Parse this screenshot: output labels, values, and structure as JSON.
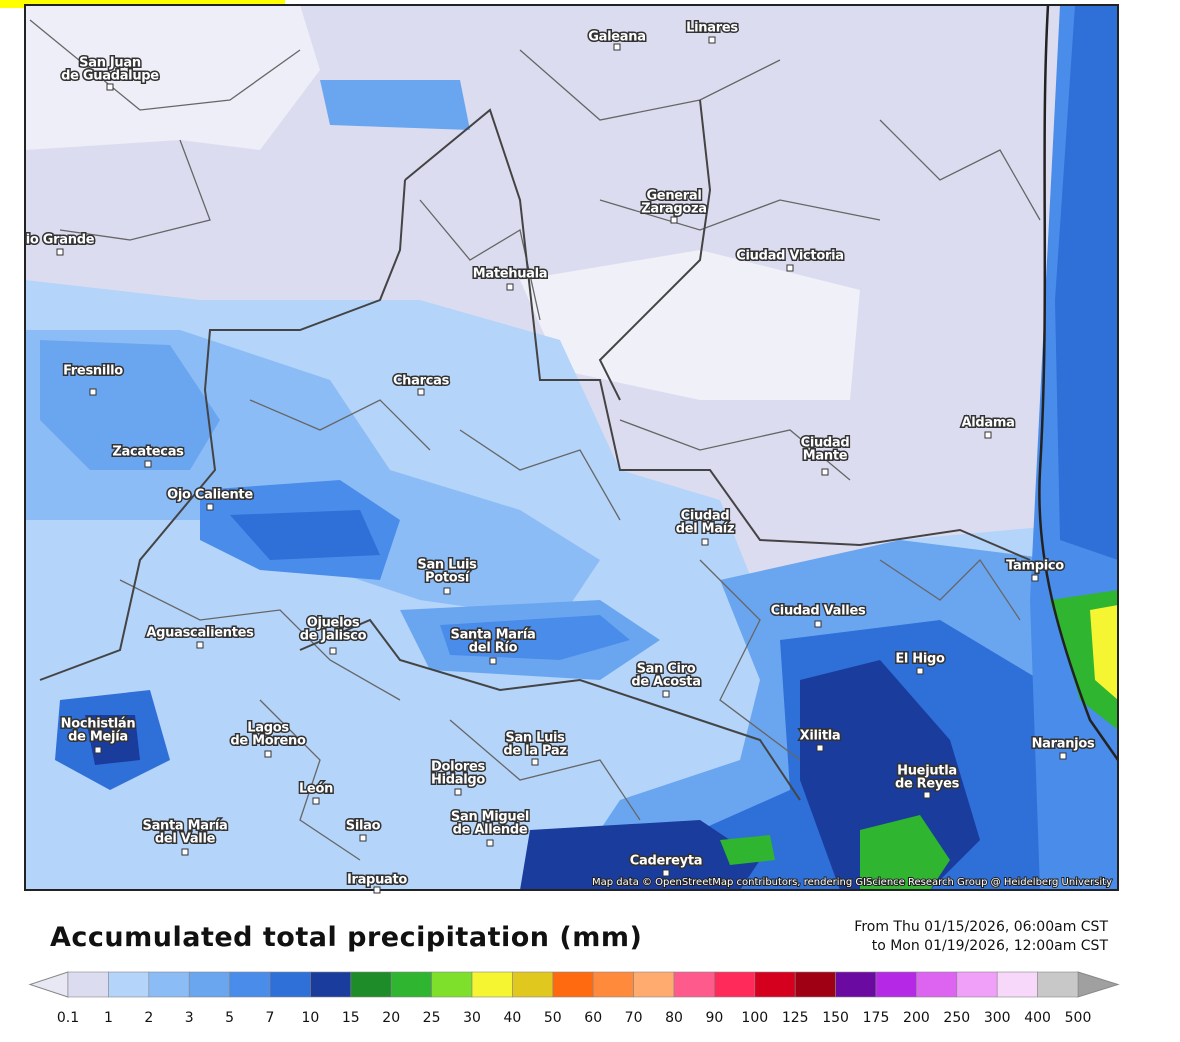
{
  "map": {
    "cities": [
      {
        "lines": [
          "San Juan",
          "de Guadalupe"
        ]
      },
      {
        "lines": [
          "Galeana"
        ]
      },
      {
        "lines": [
          "Linares"
        ]
      },
      {
        "lines": [
          "General",
          "Zaragoza"
        ]
      },
      {
        "lines": [
          "Ciudad Victoria"
        ]
      },
      {
        "lines": [
          "io Grande"
        ]
      },
      {
        "lines": [
          "Matehuala"
        ]
      },
      {
        "lines": [
          "Fresnillo"
        ]
      },
      {
        "lines": [
          "Charcas"
        ]
      },
      {
        "lines": [
          "Zacatecas"
        ]
      },
      {
        "lines": [
          "Aldama"
        ]
      },
      {
        "lines": [
          "Ciudad",
          "Mante"
        ]
      },
      {
        "lines": [
          "Ojo Caliente"
        ]
      },
      {
        "lines": [
          "Ciudad",
          "del Maíz"
        ]
      },
      {
        "lines": [
          "Tampico"
        ]
      },
      {
        "lines": [
          "San Luis",
          "Potosí"
        ]
      },
      {
        "lines": [
          "Ciudad Valles"
        ]
      },
      {
        "lines": [
          "Aguascalientes"
        ]
      },
      {
        "lines": [
          "Ojuelos",
          "de Jalisco"
        ]
      },
      {
        "lines": [
          "Santa María",
          "del Río"
        ]
      },
      {
        "lines": [
          "El Higo"
        ]
      },
      {
        "lines": [
          "San Ciro",
          "de Acosta"
        ]
      },
      {
        "lines": [
          "Nochistlán",
          "de Mejía"
        ]
      },
      {
        "lines": [
          "Lagos",
          "de Moreno"
        ]
      },
      {
        "lines": [
          "Xilitla"
        ]
      },
      {
        "lines": [
          "San Luis",
          "de la Paz"
        ]
      },
      {
        "lines": [
          "Huejutla",
          "de Reyes"
        ]
      },
      {
        "lines": [
          "Naranjos"
        ]
      },
      {
        "lines": [
          "Dolores",
          "Hidalgo"
        ]
      },
      {
        "lines": [
          "León"
        ]
      },
      {
        "lines": [
          "Silao"
        ]
      },
      {
        "lines": [
          "San Miguel",
          "de Allende"
        ]
      },
      {
        "lines": [
          "Santa María",
          "del Valle"
        ]
      },
      {
        "lines": [
          "Cadereyta"
        ]
      },
      {
        "lines": [
          "Irapuato"
        ]
      }
    ],
    "attribution": "Map data © OpenStreetMap contributors, rendering GIScience Research Group @ Heidelberg University"
  },
  "legend": {
    "title": "Accumulated total precipitation (mm)",
    "period": [
      "From Thu 01/15/2026, 06:00am CST",
      "to Mon 01/19/2026, 12:00am CST"
    ],
    "ticks": [
      "0.1",
      "1",
      "2",
      "3",
      "5",
      "7",
      "10",
      "15",
      "20",
      "25",
      "30",
      "40",
      "50",
      "60",
      "70",
      "80",
      "90",
      "100",
      "125",
      "150",
      "175",
      "200",
      "250",
      "300",
      "400",
      "500"
    ],
    "colors": [
      "#dcdcf0",
      "#b4d4fa",
      "#8cbcf5",
      "#6aa6f0",
      "#4a8cea",
      "#2f6fd8",
      "#1a3c9c",
      "#1e8c28",
      "#2fb52f",
      "#7ee02a",
      "#f5f532",
      "#e0c81e",
      "#ff6a10",
      "#ff8a3c",
      "#ffaa6e",
      "#ff5a8c",
      "#ff2a5a",
      "#d4001e",
      "#a00014",
      "#6a0aa0",
      "#b428e6",
      "#dc64f0",
      "#f0a0f8",
      "#f8d8fa",
      "#c8c8c8"
    ],
    "under_color": "#e8e8f5",
    "over_color": "#a0a0a0"
  }
}
